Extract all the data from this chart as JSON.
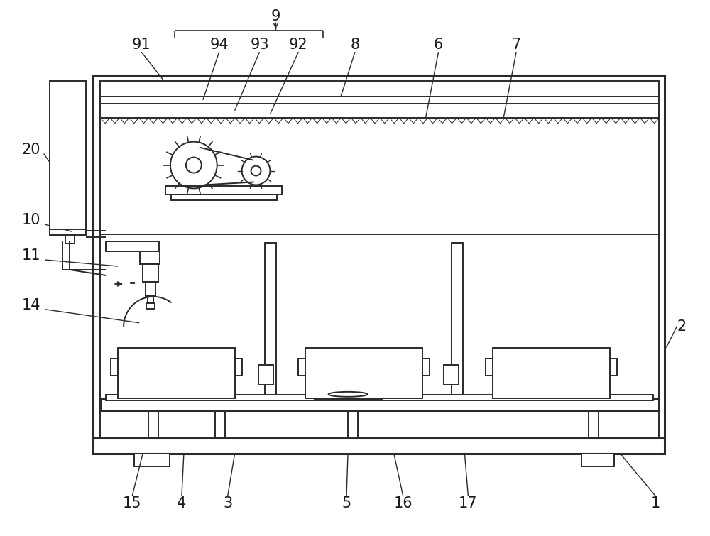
{
  "bg_color": "#ffffff",
  "line_color": "#2a2a2a",
  "lw": 1.4,
  "tlw": 2.2,
  "fig_width": 10.0,
  "fig_height": 7.55
}
